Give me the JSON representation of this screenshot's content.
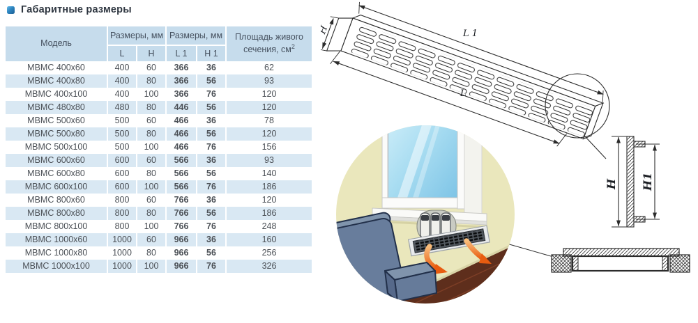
{
  "title": {
    "text": "Габаритные размеры"
  },
  "table": {
    "headers": {
      "model": "Модель",
      "dims1": "Размеры, мм",
      "dims2": "Размеры, мм",
      "l": "L",
      "h": "H",
      "l1": "L 1",
      "h1": "H 1",
      "area_line1": "Площадь живого",
      "area_line2": "сечения, см",
      "area_sup": "2"
    },
    "rows": [
      {
        "model": "МВМС 400x60",
        "l": "400",
        "h": "60",
        "l1": "366",
        "h1": "36",
        "area": "62"
      },
      {
        "model": "МВМС 400x80",
        "l": "400",
        "h": "80",
        "l1": "366",
        "h1": "56",
        "area": "93"
      },
      {
        "model": "МВМС 400x100",
        "l": "400",
        "h": "100",
        "l1": "366",
        "h1": "76",
        "area": "120"
      },
      {
        "model": "МВМС 480x80",
        "l": "480",
        "h": "80",
        "l1": "446",
        "h1": "56",
        "area": "120"
      },
      {
        "model": "МВМС 500x60",
        "l": "500",
        "h": "60",
        "l1": "466",
        "h1": "36",
        "area": "78"
      },
      {
        "model": "МВМС 500x80",
        "l": "500",
        "h": "80",
        "l1": "466",
        "h1": "56",
        "area": "120"
      },
      {
        "model": "МВМС 500x100",
        "l": "500",
        "h": "100",
        "l1": "466",
        "h1": "76",
        "area": "156"
      },
      {
        "model": "МВМС 600x60",
        "l": "600",
        "h": "60",
        "l1": "566",
        "h1": "36",
        "area": "93"
      },
      {
        "model": "МВМС 600x80",
        "l": "600",
        "h": "80",
        "l1": "566",
        "h1": "56",
        "area": "140"
      },
      {
        "model": "МВМС 600x100",
        "l": "600",
        "h": "100",
        "l1": "566",
        "h1": "76",
        "area": "186"
      },
      {
        "model": "МВМС 800x60",
        "l": "800",
        "h": "60",
        "l1": "766",
        "h1": "36",
        "area": "120"
      },
      {
        "model": "МВМС 800x80",
        "l": "800",
        "h": "80",
        "l1": "766",
        "h1": "56",
        "area": "186"
      },
      {
        "model": "МВМС 800x100",
        "l": "800",
        "h": "100",
        "l1": "766",
        "h1": "76",
        "area": "248"
      },
      {
        "model": "МВМС 1000x60",
        "l": "1000",
        "h": "60",
        "l1": "966",
        "h1": "36",
        "area": "160"
      },
      {
        "model": "МВМС 1000x80",
        "l": "1000",
        "h": "80",
        "l1": "966",
        "h1": "56",
        "area": "256"
      },
      {
        "model": "МВМС 1000x100",
        "l": "1000",
        "h": "100",
        "l1": "966",
        "h1": "76",
        "area": "326"
      }
    ]
  },
  "drawing": {
    "labels": {
      "height_iso": "H",
      "length_inner": "L 1",
      "length_outer": "L",
      "height_side": "H",
      "height_inner_side": "H1"
    }
  },
  "colors": {
    "accent_blue": "#2e86c1",
    "table_header_bg": "#c6dcec",
    "table_row_alt_bg": "#d9e8f3",
    "wall": "#eae7bc",
    "sofa": "#687d9c",
    "arrow_orange": "#e85c10",
    "floor_brown": "#5e2e1c"
  }
}
